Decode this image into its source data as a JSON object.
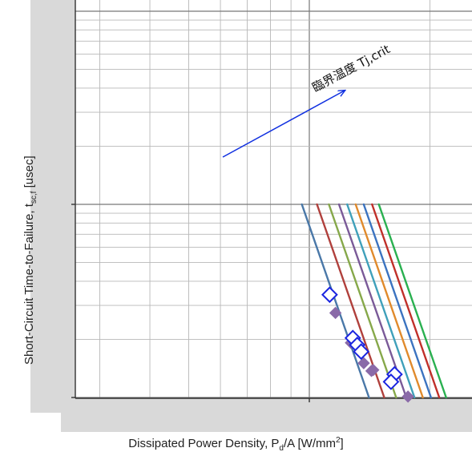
{
  "chart_data": {
    "type": "line",
    "xlabel": {
      "main": "Dissipated Power Density, P",
      "sub": "d",
      "mid": "/A [W/mm",
      "sup": "2",
      "end": "]"
    },
    "ylabel": {
      "main": "Short-Circuit Time-to-Failure, t",
      "sub": "sc,f",
      "end": " [usec]"
    },
    "x_scale": "log",
    "y_scale": "log",
    "xlim": [
      0.01,
      0.025
    ],
    "ylim": [
      0.01,
      0.1
    ],
    "grid": true,
    "annotation": {
      "text": "臨界温度 Tj,crit",
      "arrow_color": "#1030e0"
    },
    "series": [
      {
        "color": "#4a78a8",
        "points": [
          [
            0.00958,
            0.1
          ],
          [
            0.01409,
            0.01
          ]
        ]
      },
      {
        "color": "#b0403c",
        "points": [
          [
            0.01045,
            0.1
          ],
          [
            0.01538,
            0.01
          ]
        ]
      },
      {
        "color": "#86a84a",
        "points": [
          [
            0.01119,
            0.1
          ],
          [
            0.01647,
            0.01
          ]
        ]
      },
      {
        "color": "#7a5a98",
        "points": [
          [
            0.01186,
            0.1
          ],
          [
            0.01746,
            0.01
          ]
        ]
      },
      {
        "color": "#3fa0ba",
        "points": [
          [
            0.01243,
            0.1
          ],
          [
            0.0183,
            0.01
          ]
        ]
      },
      {
        "color": "#e08a2c",
        "points": [
          [
            0.01305,
            0.1
          ],
          [
            0.0192,
            0.01
          ]
        ]
      },
      {
        "color": "#3b73c0",
        "points": [
          [
            0.01367,
            0.1
          ],
          [
            0.02012,
            0.01
          ]
        ]
      },
      {
        "color": "#c0302a",
        "points": [
          [
            0.01434,
            0.1
          ],
          [
            0.0211,
            0.01
          ]
        ]
      },
      {
        "color": "#2ab050",
        "points": [
          [
            0.01491,
            0.1
          ],
          [
            0.02195,
            0.01
          ]
        ]
      }
    ],
    "markers_open": {
      "color": "#1a24e0",
      "points": [
        [
          0.01124,
          0.03405
        ],
        [
          0.01284,
          0.02032
        ],
        [
          0.01317,
          0.01871
        ],
        [
          0.01347,
          0.01729
        ],
        [
          0.01632,
          0.01318
        ],
        [
          0.01599,
          0.01206
        ]
      ]
    },
    "markers_filled": {
      "color": "#8a6aa8",
      "points": [
        [
          0.01162,
          0.02741
        ],
        [
          0.0127,
          0.01919
        ],
        [
          0.01367,
          0.01506
        ],
        [
          0.01429,
          0.01373
        ],
        [
          0.01444,
          0.01388
        ],
        [
          0.01763,
          0.01011
        ]
      ]
    }
  }
}
